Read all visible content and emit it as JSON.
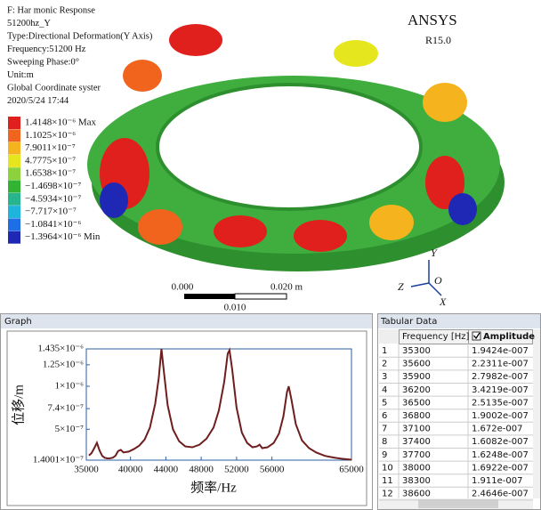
{
  "header": {
    "lines": [
      "F: Har monic Response",
      "51200hz_Y",
      "Type:Directional Deformation(Y Axis)",
      "Frequency:51200 Hz",
      "Sweeping Phase:0°",
      "Unit:m",
      "Global Coordinate syster",
      "2020/5/24 17:44"
    ]
  },
  "brand": {
    "name": "ANSYS",
    "version": "R15.0"
  },
  "legend": [
    {
      "label": "1.4148×10⁻⁶ Max",
      "color": "#e0201c"
    },
    {
      "label": "1.1025×10⁻⁶",
      "color": "#f0641e"
    },
    {
      "label": "7.9011×10⁻⁷",
      "color": "#f5b41e"
    },
    {
      "label": "4.7775×10⁻⁷",
      "color": "#e6e61e"
    },
    {
      "label": "1.6538×10⁻⁷",
      "color": "#8cd23c"
    },
    {
      "label": "−1.4698×10⁻⁷",
      "color": "#32b432"
    },
    {
      "label": "−4.5934×10⁻⁷",
      "color": "#28b48c"
    },
    {
      "label": "−7.717×10⁻⁷",
      "color": "#1eb4dc"
    },
    {
      "label": "−1.0841×10⁻⁶",
      "color": "#1e6ee6"
    },
    {
      "label": "−1.3964×10⁻⁶ Min",
      "color": "#1e28b4"
    }
  ],
  "scale_bar": {
    "start": "0.000",
    "end": "0.020 m",
    "mid": "0.010"
  },
  "triad": {
    "y": "Y",
    "z": "Z",
    "o": "O",
    "x": "X"
  },
  "graph_panel": {
    "title": "Graph"
  },
  "chart_data": {
    "type": "line",
    "ylabel": "位移/m",
    "xlabel": "频率/Hz",
    "color": "#6e1e1e",
    "x": [
      35300,
      35600,
      35900,
      36200,
      36500,
      36800,
      37100,
      37400,
      37700,
      38000,
      38300,
      38600,
      38900,
      39200,
      39800,
      40400,
      41000,
      41600,
      42200,
      42800,
      43200,
      43500,
      43800,
      44200,
      44800,
      45500,
      46200,
      47000,
      47800,
      48600,
      49400,
      50000,
      50600,
      51000,
      51200,
      51500,
      52000,
      52600,
      53200,
      53800,
      54300,
      54600,
      54900,
      55500,
      56200,
      56800,
      57300,
      57700,
      57900,
      58200,
      58700,
      59400,
      60200,
      61000,
      62000,
      63000,
      64000,
      65000
    ],
    "values": [
      1.9424e-07,
      2.2311e-07,
      2.7982e-07,
      3.4219e-07,
      2.5135e-07,
      1.9002e-07,
      1.672e-07,
      1.6082e-07,
      1.6248e-07,
      1.6922e-07,
      1.911e-07,
      2.4646e-07,
      2.6e-07,
      2.3e-07,
      2.4e-07,
      2.7e-07,
      3.1e-07,
      3.8e-07,
      5.2e-07,
      8e-07,
      1.1e-06,
      1.435e-06,
      1.15e-06,
      7.8e-07,
      5e-07,
      3.6e-07,
      3e-07,
      2.9e-07,
      3.2e-07,
      3.9e-07,
      5.2e-07,
      7.2e-07,
      1.05e-06,
      1.38e-06,
      1.42e-06,
      1.2e-06,
      7.5e-07,
      4.6e-07,
      3.4e-07,
      2.9e-07,
      3e-07,
      3.2e-07,
      2.8e-07,
      2.9e-07,
      3.4e-07,
      4.5e-07,
      6.5e-07,
      9.3e-07,
      1e-06,
      8.5e-07,
      5.6e-07,
      3.7e-07,
      2.8e-07,
      2.3e-07,
      1.9e-07,
      1.7e-07,
      1.55e-07,
      1.45e-07
    ],
    "xlim": [
      35000,
      65000
    ],
    "xticks": [
      35000,
      40000,
      44000,
      48000,
      52000,
      56000,
      65000
    ],
    "ylim": [
      1.4001e-07,
      1.435e-06
    ],
    "yticks": [
      {
        "value": 1.4001e-07,
        "label": "1.4001×10⁻⁷"
      },
      {
        "value": 5e-07,
        "label": "5×10⁻⁷"
      },
      {
        "value": 7.4e-07,
        "label": "7.4×10⁻⁷"
      },
      {
        "value": 1e-06,
        "label": "1×10⁻⁶"
      },
      {
        "value": 1.25e-06,
        "label": "1.25×10⁻⁶"
      },
      {
        "value": 1.435e-06,
        "label": "1.435×10⁻⁶"
      }
    ]
  },
  "table": {
    "title": "Tabular Data",
    "columns": [
      "Frequency [Hz]",
      "Amplitude"
    ],
    "rows": [
      [
        "1",
        "35300",
        "1.9424e-007"
      ],
      [
        "2",
        "35600",
        "2.2311e-007"
      ],
      [
        "3",
        "35900",
        "2.7982e-007"
      ],
      [
        "4",
        "36200",
        "3.4219e-007"
      ],
      [
        "5",
        "36500",
        "2.5135e-007"
      ],
      [
        "6",
        "36800",
        "1.9002e-007"
      ],
      [
        "7",
        "37100",
        "1.672e-007"
      ],
      [
        "8",
        "37400",
        "1.6082e-007"
      ],
      [
        "9",
        "37700",
        "1.6248e-007"
      ],
      [
        "10",
        "38000",
        "1.6922e-007"
      ],
      [
        "11",
        "38300",
        "1.911e-007"
      ],
      [
        "12",
        "38600",
        "2.4646e-007"
      ]
    ]
  }
}
